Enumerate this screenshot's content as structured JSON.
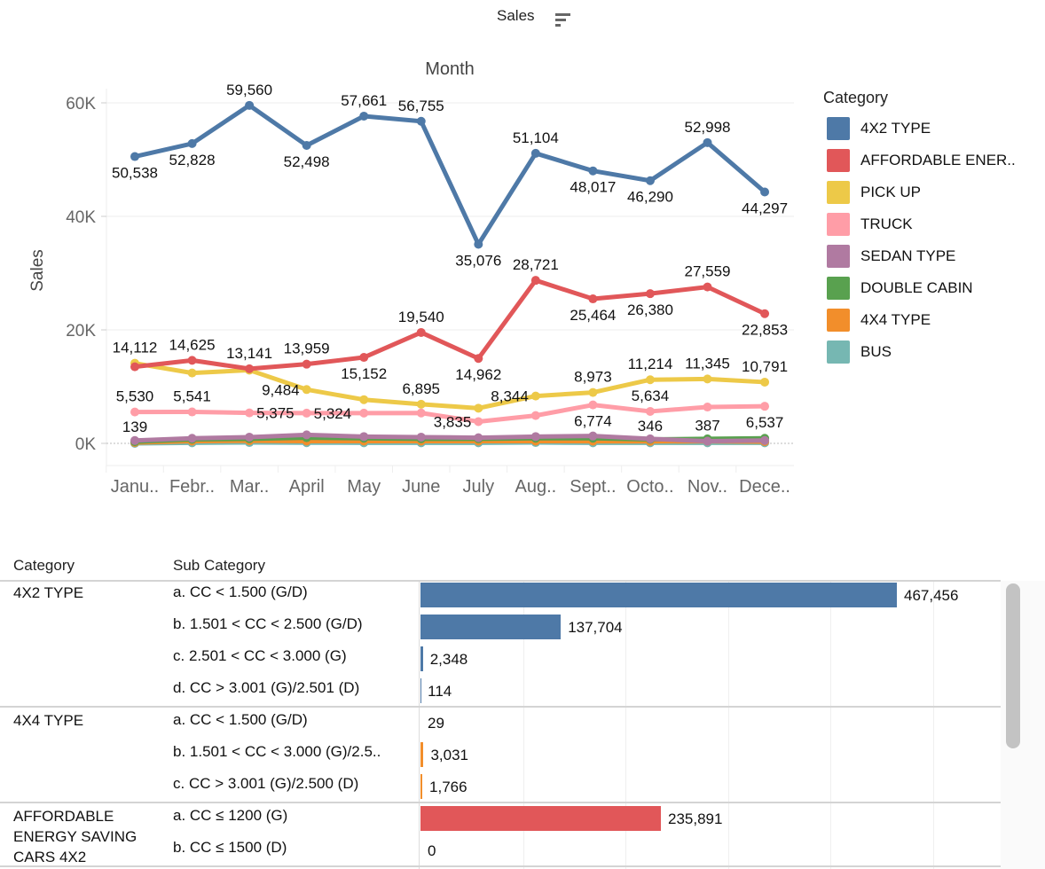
{
  "header": {
    "title": "Sales",
    "sort_icon": "sort-descending-icon"
  },
  "chart_data": [
    {
      "type": "line",
      "title": "Month",
      "xlabel": "Month",
      "ylabel": "Sales",
      "ylim": [
        0,
        60000
      ],
      "yticks": [
        {
          "value": 0,
          "label": "0K"
        },
        {
          "value": 20000,
          "label": "20K"
        },
        {
          "value": 40000,
          "label": "40K"
        },
        {
          "value": 60000,
          "label": "60K"
        }
      ],
      "grid": true,
      "legend_position": "right",
      "legend_title": "Category",
      "categories": [
        "Janu..",
        "Febr..",
        "Mar..",
        "April",
        "May",
        "June",
        "July",
        "Aug..",
        "Sept..",
        "Octo..",
        "Nov..",
        "Dece.."
      ],
      "series": [
        {
          "name": "4X2 TYPE",
          "color": "#4e79a7",
          "values": [
            50538,
            52828,
            59560,
            52498,
            57661,
            56755,
            35076,
            51104,
            48017,
            46290,
            52998,
            44297
          ],
          "labels": [
            {
              "i": 0,
              "text": "50,538",
              "pos": "below"
            },
            {
              "i": 1,
              "text": "52,828",
              "pos": "below"
            },
            {
              "i": 2,
              "text": "59,560",
              "pos": "above"
            },
            {
              "i": 3,
              "text": "52,498",
              "pos": "below"
            },
            {
              "i": 4,
              "text": "57,661",
              "pos": "above"
            },
            {
              "i": 5,
              "text": "56,755",
              "pos": "above"
            },
            {
              "i": 6,
              "text": "35,076",
              "pos": "below"
            },
            {
              "i": 7,
              "text": "51,104",
              "pos": "above"
            },
            {
              "i": 8,
              "text": "48,017",
              "pos": "below"
            },
            {
              "i": 9,
              "text": "46,290",
              "pos": "below"
            },
            {
              "i": 10,
              "text": "52,998",
              "pos": "above"
            },
            {
              "i": 11,
              "text": "44,297",
              "pos": "below"
            }
          ]
        },
        {
          "name": "AFFORDABLE ENER..",
          "color": "#e15759",
          "values": [
            13500,
            14625,
            13141,
            13959,
            15152,
            19540,
            14962,
            28721,
            25464,
            26380,
            27559,
            22853
          ],
          "labels": [
            {
              "i": 1,
              "text": "14,625",
              "pos": "above"
            },
            {
              "i": 2,
              "text": "13,141",
              "pos": "above"
            },
            {
              "i": 3,
              "text": "13,959",
              "pos": "above"
            },
            {
              "i": 4,
              "text": "15,152",
              "pos": "below"
            },
            {
              "i": 5,
              "text": "19,540",
              "pos": "above"
            },
            {
              "i": 6,
              "text": "14,962",
              "pos": "below"
            },
            {
              "i": 7,
              "text": "28,721",
              "pos": "above"
            },
            {
              "i": 8,
              "text": "25,464",
              "pos": "below"
            },
            {
              "i": 9,
              "text": "26,380",
              "pos": "below"
            },
            {
              "i": 10,
              "text": "27,559",
              "pos": "above"
            },
            {
              "i": 11,
              "text": "22,853",
              "pos": "below"
            }
          ]
        },
        {
          "name": "PICK UP",
          "color": "#edc948",
          "values": [
            14112,
            12400,
            12900,
            9484,
            7700,
            6895,
            6200,
            8344,
            8973,
            11214,
            11345,
            10791
          ],
          "labels": [
            {
              "i": 0,
              "text": "14,112",
              "pos": "above"
            },
            {
              "i": 3,
              "text": "9,484",
              "pos": "left"
            },
            {
              "i": 5,
              "text": "6,895",
              "pos": "above"
            },
            {
              "i": 7,
              "text": "8,344",
              "pos": "left"
            },
            {
              "i": 8,
              "text": "8,973",
              "pos": "above"
            },
            {
              "i": 9,
              "text": "11,214",
              "pos": "above"
            },
            {
              "i": 10,
              "text": "11,345",
              "pos": "above"
            },
            {
              "i": 11,
              "text": "10,791",
              "pos": "above"
            }
          ]
        },
        {
          "name": "TRUCK",
          "color": "#ff9da7",
          "values": [
            5530,
            5541,
            5375,
            5324,
            5330,
            5350,
            3835,
            4900,
            6774,
            5634,
            6400,
            6537
          ],
          "labels": [
            {
              "i": 0,
              "text": "5,530",
              "pos": "above"
            },
            {
              "i": 1,
              "text": "5,541",
              "pos": "above"
            },
            {
              "i": 2,
              "text": "5,375",
              "pos": "right"
            },
            {
              "i": 3,
              "text": "5,324",
              "pos": "right"
            },
            {
              "i": 6,
              "text": "3,835",
              "pos": "left"
            },
            {
              "i": 8,
              "text": "6,774",
              "pos": "below"
            },
            {
              "i": 9,
              "text": "5,634",
              "pos": "above"
            },
            {
              "i": 11,
              "text": "6,537",
              "pos": "below"
            }
          ]
        },
        {
          "name": "SEDAN TYPE",
          "color": "#b07aa1",
          "values": [
            500,
            900,
            1100,
            1500,
            1200,
            1100,
            1000,
            1200,
            1300,
            800,
            387,
            500
          ],
          "labels": [
            {
              "i": 10,
              "text": "387",
              "pos": "above"
            }
          ]
        },
        {
          "name": "DOUBLE CABIN",
          "color": "#59a14f",
          "values": [
            300,
            700,
            800,
            1000,
            900,
            800,
            800,
            900,
            900,
            700,
            800,
            900
          ],
          "labels": []
        },
        {
          "name": "4X4 TYPE",
          "color": "#f28e2b",
          "values": [
            139,
            400,
            450,
            400,
            400,
            400,
            400,
            400,
            380,
            346,
            380,
            300
          ],
          "labels": [
            {
              "i": 0,
              "text": "139",
              "pos": "above"
            },
            {
              "i": 9,
              "text": "346",
              "pos": "above"
            }
          ]
        },
        {
          "name": "BUS",
          "color": "#76b7b2",
          "values": [
            0,
            100,
            150,
            120,
            100,
            100,
            100,
            150,
            100,
            100,
            100,
            100
          ],
          "labels": []
        }
      ]
    },
    {
      "type": "bar",
      "orientation": "horizontal",
      "columns": [
        "Category",
        "Sub Category"
      ],
      "xlim": [
        0,
        550000
      ],
      "groups": [
        {
          "category": "4X2 TYPE",
          "color": "#4e79a7",
          "rows": [
            {
              "sub": "a. CC < 1.500 (G/D)",
              "value": 467456,
              "label": "467,456"
            },
            {
              "sub": "b. 1.501 < CC < 2.500 (G/D)",
              "value": 137704,
              "label": "137,704"
            },
            {
              "sub": "c. 2.501 < CC < 3.000 (G)",
              "value": 2348,
              "label": "2,348"
            },
            {
              "sub": "d. CC > 3.001 (G)/2.501 (D)",
              "value": 114,
              "label": "114"
            }
          ]
        },
        {
          "category": "4X4 TYPE",
          "color": "#f28e2b",
          "rows": [
            {
              "sub": "a. CC < 1.500 (G/D)",
              "value": 29,
              "label": "29"
            },
            {
              "sub": "b. 1.501 < CC < 3.000 (G)/2.5..",
              "value": 3031,
              "label": "3,031"
            },
            {
              "sub": "c. CC > 3.001 (G)/2.500 (D)",
              "value": 1766,
              "label": "1,766"
            }
          ]
        },
        {
          "category": "AFFORDABLE ENERGY SAVING CARS 4X2",
          "color": "#e15759",
          "rows": [
            {
              "sub": "a. CC ≤ 1200 (G)",
              "value": 235891,
              "label": "235,891"
            },
            {
              "sub": "b. CC ≤ 1500 (D)",
              "value": 0,
              "label": "0"
            }
          ]
        }
      ]
    }
  ]
}
